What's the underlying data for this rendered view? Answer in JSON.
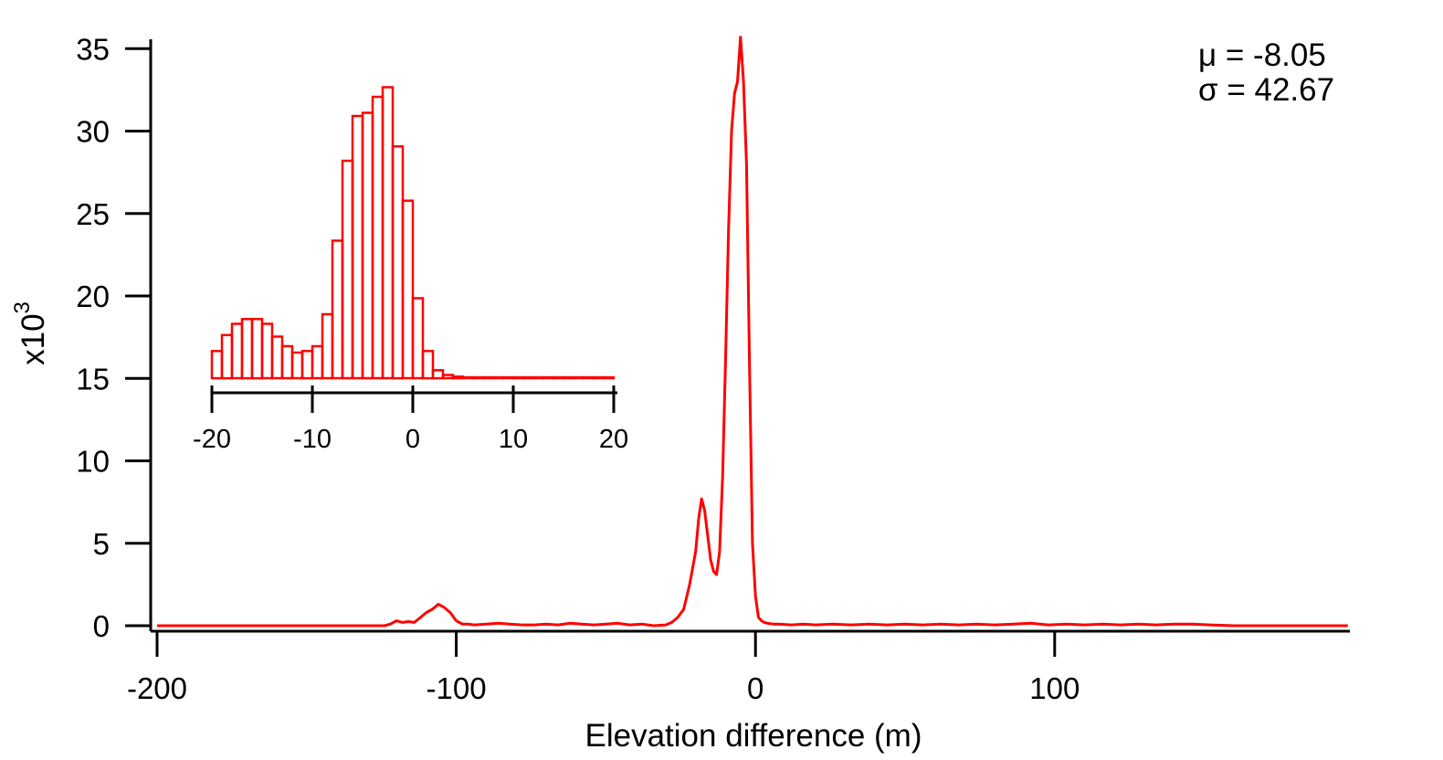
{
  "chart_data": [
    {
      "type": "line",
      "xlabel": "Elevation difference (m)",
      "ylabel": "x10",
      "ylabel_exponent": "3",
      "xlim": [
        -202,
        200
      ],
      "ylim": [
        0,
        35.8
      ],
      "xticks": [
        -200,
        -100,
        0,
        100
      ],
      "xtick_labels": [
        "-200",
        "-100",
        "0",
        "100"
      ],
      "yticks": [
        0,
        5,
        10,
        15,
        20,
        25,
        30,
        35
      ],
      "ytick_labels": [
        "0",
        "5",
        "10",
        "15",
        "20",
        "25",
        "30",
        "35"
      ],
      "grid": false,
      "annotations": [
        "μ = -8.05",
        "σ = 42.67"
      ],
      "color": "#ff0000",
      "series": [
        {
          "x": [
            -200,
            -180,
            -160,
            -140,
            -124,
            -122,
            -120,
            -118,
            -116,
            -114,
            -112,
            -110,
            -108,
            -106,
            -104,
            -102,
            -100,
            -98,
            -96,
            -94,
            -90,
            -86,
            -82,
            -78,
            -74,
            -70,
            -66,
            -62,
            -58,
            -54,
            -50,
            -46,
            -42,
            -38,
            -34,
            -30,
            -28,
            -26,
            -24,
            -22,
            -20,
            -19,
            -18,
            -17,
            -16,
            -15,
            -14,
            -13,
            -12,
            -11,
            -10,
            -9,
            -8,
            -7,
            -6,
            -5,
            -4,
            -3,
            -2,
            -1,
            0,
            1,
            2,
            3,
            4,
            6,
            8,
            12,
            16,
            20,
            26,
            32,
            38,
            44,
            50,
            56,
            62,
            68,
            74,
            80,
            86,
            92,
            98,
            104,
            110,
            116,
            122,
            128,
            134,
            140,
            146,
            152,
            160,
            170,
            180,
            190,
            198
          ],
          "y": [
            0,
            0,
            0,
            0,
            0,
            0.1,
            0.3,
            0.2,
            0.25,
            0.2,
            0.5,
            0.8,
            1.0,
            1.3,
            1.1,
            0.8,
            0.3,
            0.1,
            0.1,
            0.05,
            0.1,
            0.15,
            0.1,
            0.05,
            0.05,
            0.1,
            0.05,
            0.15,
            0.1,
            0.05,
            0.1,
            0.15,
            0.05,
            0.1,
            0.0,
            0.05,
            0.2,
            0.5,
            1.0,
            2.5,
            4.5,
            6.5,
            7.7,
            7.0,
            5.5,
            4.0,
            3.3,
            3.1,
            4.5,
            9.0,
            16.0,
            24.0,
            30.0,
            32.3,
            33.0,
            35.7,
            33.0,
            28.0,
            16.0,
            5.0,
            1.8,
            0.5,
            0.3,
            0.2,
            0.15,
            0.1,
            0.1,
            0.05,
            0.1,
            0.05,
            0.1,
            0.05,
            0.1,
            0.05,
            0.1,
            0.05,
            0.1,
            0.05,
            0.1,
            0.05,
            0.1,
            0.15,
            0.05,
            0.1,
            0.05,
            0.1,
            0.05,
            0.1,
            0.05,
            0.1,
            0.1,
            0.05,
            0.0,
            0.0,
            0.0,
            0.0,
            0.0
          ]
        }
      ]
    },
    {
      "type": "bar",
      "inset": true,
      "xlim": [
        -20,
        20
      ],
      "xticks": [
        -20,
        -10,
        0,
        10,
        20
      ],
      "xtick_labels": [
        "-20",
        "-10",
        "0",
        "10",
        "20"
      ],
      "baseline_y": 15,
      "bin_width": 1,
      "color": "#ff0000",
      "bins": [
        -20,
        -19,
        -18,
        -17,
        -16,
        -15,
        -14,
        -13,
        -12,
        -11,
        -10,
        -9,
        -8,
        -7,
        -6,
        -5,
        -4,
        -3,
        -2,
        -1,
        0,
        1,
        2,
        3,
        4,
        5,
        6,
        7,
        8,
        9,
        10,
        11,
        12,
        13,
        14,
        15,
        16,
        17,
        18,
        19
      ],
      "values": [
        16.7,
        17.7,
        18.4,
        18.7,
        18.7,
        18.4,
        17.6,
        17.0,
        16.6,
        16.7,
        17.0,
        19.0,
        23.6,
        28.6,
        31.4,
        31.6,
        32.6,
        33.2,
        29.5,
        26.1,
        20.0,
        16.7,
        15.5,
        15.2,
        15.1,
        15.05,
        15.05,
        15.05,
        15.05,
        15.05,
        15.05,
        15.05,
        15.05,
        15.05,
        15.05,
        15.05,
        15.05,
        15.05,
        15.05,
        15.05
      ]
    }
  ]
}
